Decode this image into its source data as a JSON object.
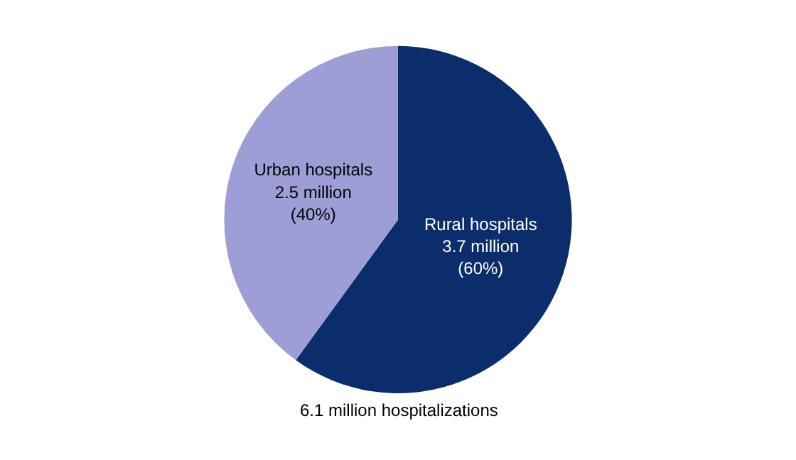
{
  "chart_data": {
    "type": "pie",
    "categories": [
      "Rural hospitals",
      "Urban hospitals"
    ],
    "values": [
      60,
      40
    ],
    "value_labels": [
      "3.7 million\n(60%)",
      "2.5 million\n(40%)"
    ],
    "colors": [
      "#0c2d6b",
      "#9e9ed6"
    ],
    "annotations": [
      "6.1 million hospitalizations"
    ]
  }
}
